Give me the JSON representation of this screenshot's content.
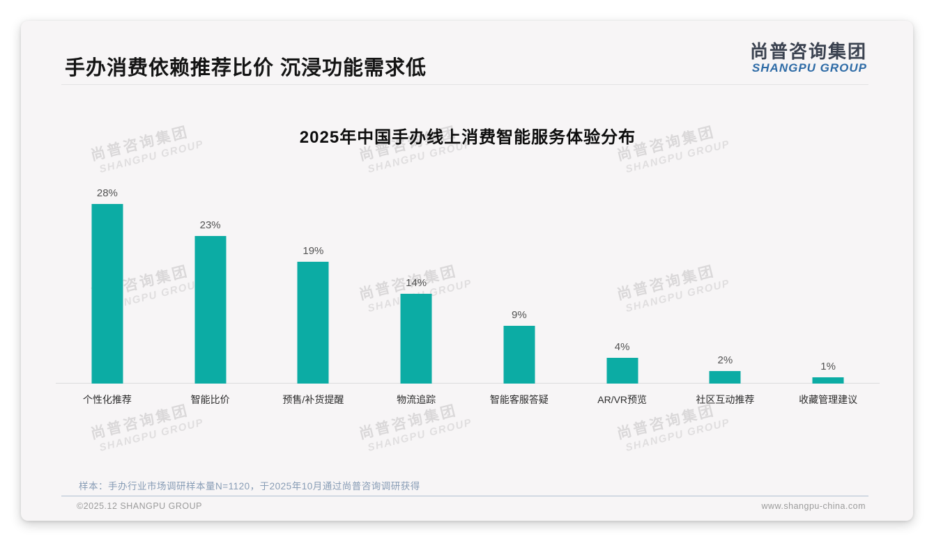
{
  "header": {
    "title": "手办消费依赖推荐比价 沉浸功能需求低",
    "logo_cn": "尚普咨询集团",
    "logo_en": "SHANGPU GROUP"
  },
  "watermark": {
    "cn": "尚普咨询集团",
    "en": "SHANGPU GROUP"
  },
  "chart_data": {
    "type": "bar",
    "title": "2025年中国手办线上消费智能服务体验分布",
    "categories": [
      "个性化推荐",
      "智能比价",
      "预售/补货提醒",
      "物流追踪",
      "智能客服答疑",
      "AR/VR预览",
      "社区互动推荐",
      "收藏管理建议"
    ],
    "values": [
      28,
      23,
      19,
      14,
      9,
      4,
      2,
      1
    ],
    "value_labels": [
      "28%",
      "23%",
      "19%",
      "14%",
      "9%",
      "4%",
      "2%",
      "1%"
    ],
    "unit": "%",
    "xlabel": "",
    "ylabel": "",
    "ylim": [
      0,
      30
    ],
    "grid": false,
    "legend_position": "none",
    "bar_color": "#0CACA4",
    "axis_color": "#dcdcdc"
  },
  "footer": {
    "note": "样本：手办行业市场调研样本量N=1120，于2025年10月通过尚普咨询调研获得",
    "copyright": "©2025.12 SHANGPU GROUP",
    "website": "www.shangpu-china.com"
  },
  "colors": {
    "accent_teal": "#0CACA4",
    "logo_blue": "#2E6BA6",
    "note_blue": "#879CB5"
  }
}
